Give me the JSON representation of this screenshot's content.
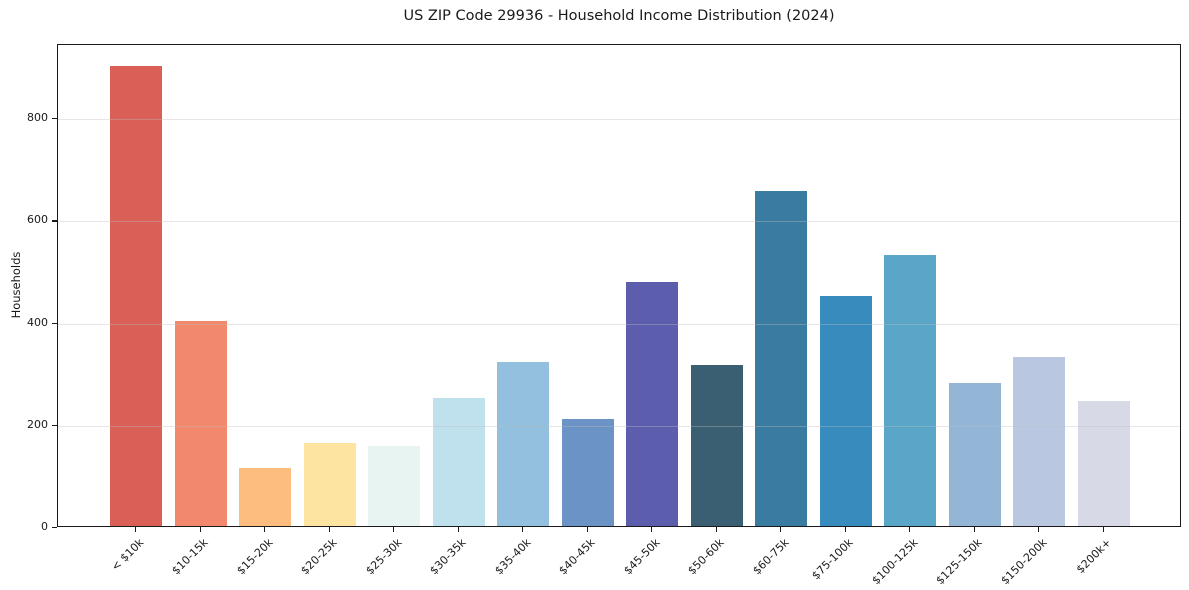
{
  "chart_data": {
    "type": "bar",
    "title": "US ZIP Code 29936 - Household Income Distribution (2024)",
    "xlabel": "",
    "ylabel": "Households",
    "categories": [
      "< $10k",
      "$10-15k",
      "$15-20k",
      "$20-25k",
      "$25-30k",
      "$30-35k",
      "$35-40k",
      "$40-45k",
      "$45-50k",
      "$50-60k",
      "$60-75k",
      "$75-100k",
      "$100-125k",
      "$125-150k",
      "$150-200k",
      "$200k+"
    ],
    "values": [
      900,
      402,
      114,
      163,
      157,
      250,
      320,
      209,
      478,
      315,
      655,
      450,
      530,
      279,
      330,
      245
    ],
    "bar_colors": [
      "#d95f57",
      "#f3896c",
      "#fcbd7e",
      "#fde4a0",
      "#e8f4f1",
      "#bfe1ee",
      "#92c0de",
      "#6c93c5",
      "#5c5dac",
      "#3a5f72",
      "#3a7ba1",
      "#388cbd",
      "#5aa6c9",
      "#93b6d7",
      "#b9c8e0",
      "#d7d9e6"
    ],
    "ylim": [
      0,
      945
    ],
    "yticks": [
      0,
      200,
      400,
      600,
      800
    ],
    "grid": "horizontal",
    "legend_position": "none",
    "colors": {
      "background": "#ffffff",
      "spine": "#1a1a1a",
      "text": "#1a1a1a",
      "gridline": "#bebebe"
    }
  }
}
